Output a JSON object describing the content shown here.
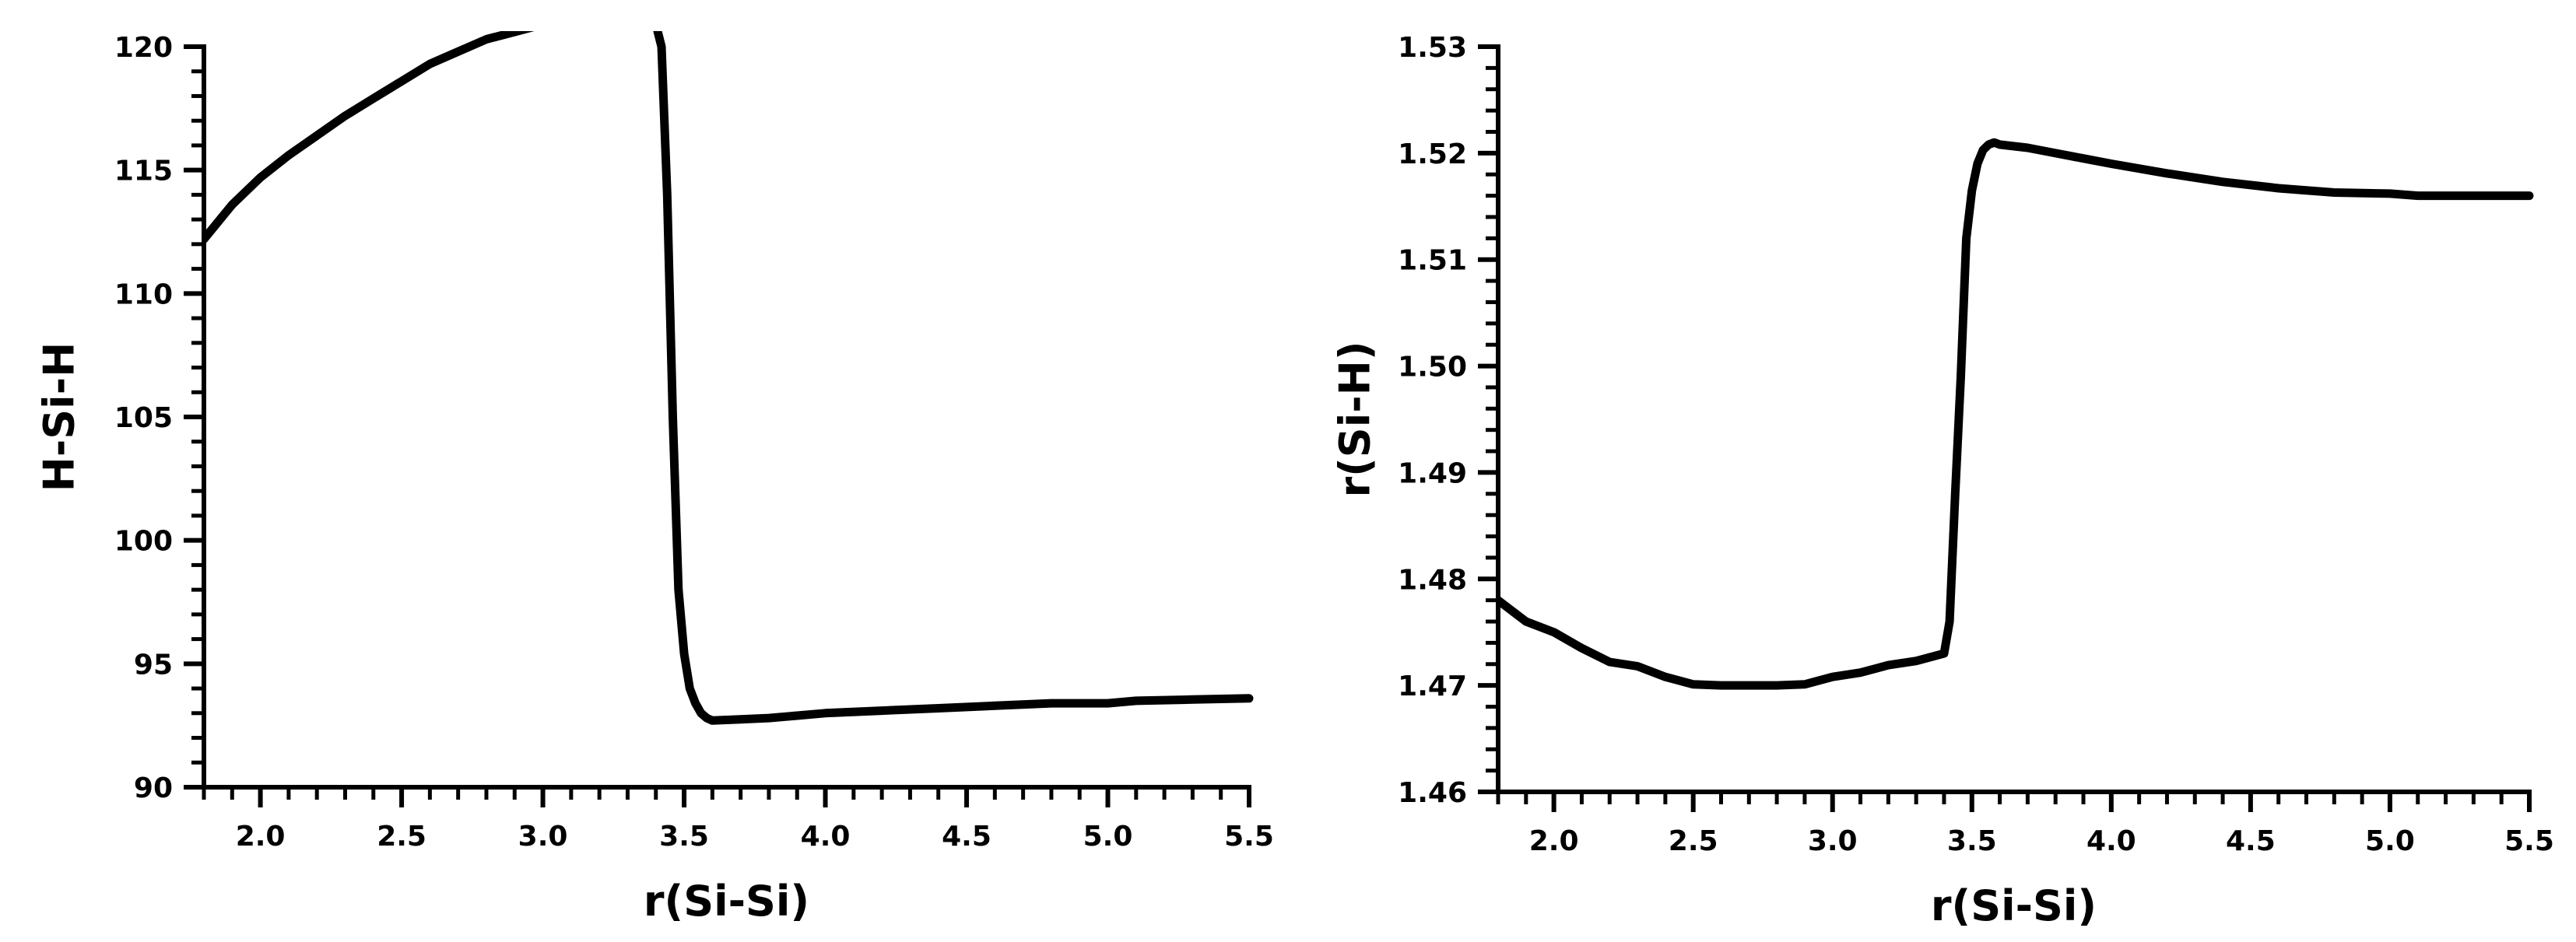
{
  "chart_data": [
    {
      "type": "line",
      "xlabel": "r(Si-Si)",
      "ylabel": "H-Si-H",
      "xlim": [
        1.8,
        5.5
      ],
      "ylim": [
        90,
        120
      ],
      "xticks": [
        "2.0",
        "2.5",
        "3.0",
        "3.5",
        "4.0",
        "4.5",
        "5.0",
        "5.5"
      ],
      "yticks": [
        "90",
        "95",
        "100",
        "105",
        "110",
        "115",
        "120"
      ],
      "grid": false,
      "series": [
        {
          "x": [
            1.8,
            1.9,
            2.0,
            2.1,
            2.2,
            2.3,
            2.4,
            2.5,
            2.6,
            2.7,
            2.8,
            2.9,
            3.0,
            3.1,
            3.2,
            3.3,
            3.4,
            3.42,
            3.44,
            3.46,
            3.48,
            3.5,
            3.52,
            3.54,
            3.56,
            3.58,
            3.6,
            3.7,
            3.8,
            3.9,
            4.0,
            4.2,
            4.4,
            4.6,
            4.8,
            5.0,
            5.1,
            5.3,
            5.5
          ],
          "y": [
            112.2,
            113.6,
            114.7,
            115.6,
            116.4,
            117.2,
            117.9,
            118.6,
            119.3,
            119.8,
            120.3,
            120.6,
            120.9,
            121.0,
            121.0,
            121.0,
            120.9,
            120.0,
            114.0,
            105.0,
            98.0,
            95.4,
            94.0,
            93.4,
            93.0,
            92.8,
            92.7,
            92.75,
            92.8,
            92.9,
            93.0,
            93.1,
            93.2,
            93.3,
            93.4,
            93.4,
            93.5,
            93.55,
            93.6
          ]
        }
      ]
    },
    {
      "type": "line",
      "xlabel": "r(Si-Si)",
      "ylabel": "r(Si-H)",
      "xlim": [
        1.8,
        5.5
      ],
      "ylim": [
        1.46,
        1.53
      ],
      "xticks": [
        "2.0",
        "2.5",
        "3.0",
        "3.5",
        "4.0",
        "4.5",
        "5.0",
        "5.5"
      ],
      "yticks": [
        "1.46",
        "1.47",
        "1.48",
        "1.49",
        "1.50",
        "1.51",
        "1.52",
        "1.53"
      ],
      "grid": false,
      "series": [
        {
          "x": [
            1.8,
            1.9,
            2.0,
            2.1,
            2.2,
            2.3,
            2.4,
            2.5,
            2.6,
            2.7,
            2.8,
            2.9,
            3.0,
            3.1,
            3.2,
            3.3,
            3.4,
            3.42,
            3.44,
            3.46,
            3.48,
            3.5,
            3.52,
            3.54,
            3.56,
            3.58,
            3.6,
            3.7,
            3.8,
            3.9,
            4.0,
            4.2,
            4.4,
            4.6,
            4.8,
            5.0,
            5.1,
            5.3,
            5.5
          ],
          "y": [
            1.478,
            1.476,
            1.475,
            1.4735,
            1.4722,
            1.4718,
            1.4708,
            1.4701,
            1.47,
            1.47,
            1.47,
            1.4701,
            1.4708,
            1.4712,
            1.4719,
            1.4723,
            1.473,
            1.476,
            1.488,
            1.499,
            1.512,
            1.5165,
            1.519,
            1.5203,
            1.5208,
            1.521,
            1.5208,
            1.5205,
            1.52,
            1.5195,
            1.519,
            1.5181,
            1.5173,
            1.5167,
            1.5163,
            1.5162,
            1.516,
            1.516,
            1.516
          ]
        }
      ]
    }
  ]
}
